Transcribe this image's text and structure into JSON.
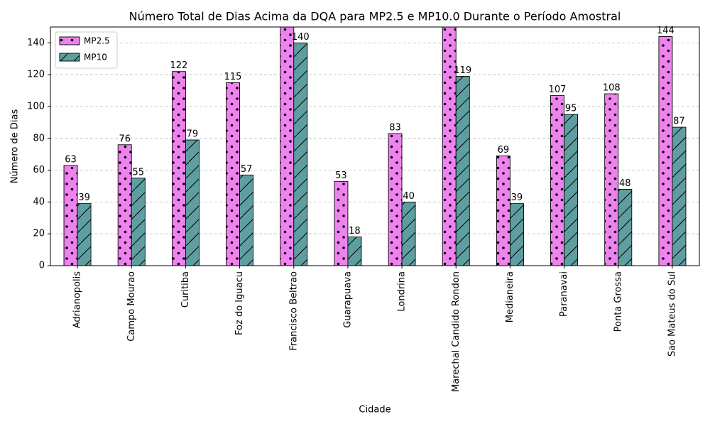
{
  "chart_data": {
    "type": "bar",
    "title": "Número Total de Dias Acima da DQA para MP2.5 e MP10.0 Durante o Período Amostral",
    "x_label": "Cidade",
    "y_label": "Número de Dias",
    "categories": [
      "Adrianopolis",
      "Campo Mourao",
      "Curitiba",
      "Foz do Iguacu",
      "Francisco Beltrao",
      "Guarapuava",
      "Londrina",
      "Marechal Candido Rondon",
      "Medianeira",
      "Paranavai",
      "Ponta Grossa",
      "Sao Mateus do Sul"
    ],
    "series": [
      {
        "name": "MP2.5",
        "color": "#ee82ee",
        "hatch": "dots",
        "values": [
          63,
          76,
          122,
          115,
          160,
          53,
          83,
          158,
          69,
          107,
          108,
          144
        ]
      },
      {
        "name": "MP10",
        "color": "#5f9ea0",
        "hatch": "diagonal",
        "values": [
          39,
          55,
          79,
          57,
          140,
          18,
          40,
          119,
          39,
          95,
          48,
          87
        ]
      }
    ],
    "ylim": [
      0,
      150
    ],
    "yticks": [
      0,
      20,
      40,
      60,
      80,
      100,
      120,
      140
    ],
    "grid": true,
    "legend": "upper left"
  }
}
